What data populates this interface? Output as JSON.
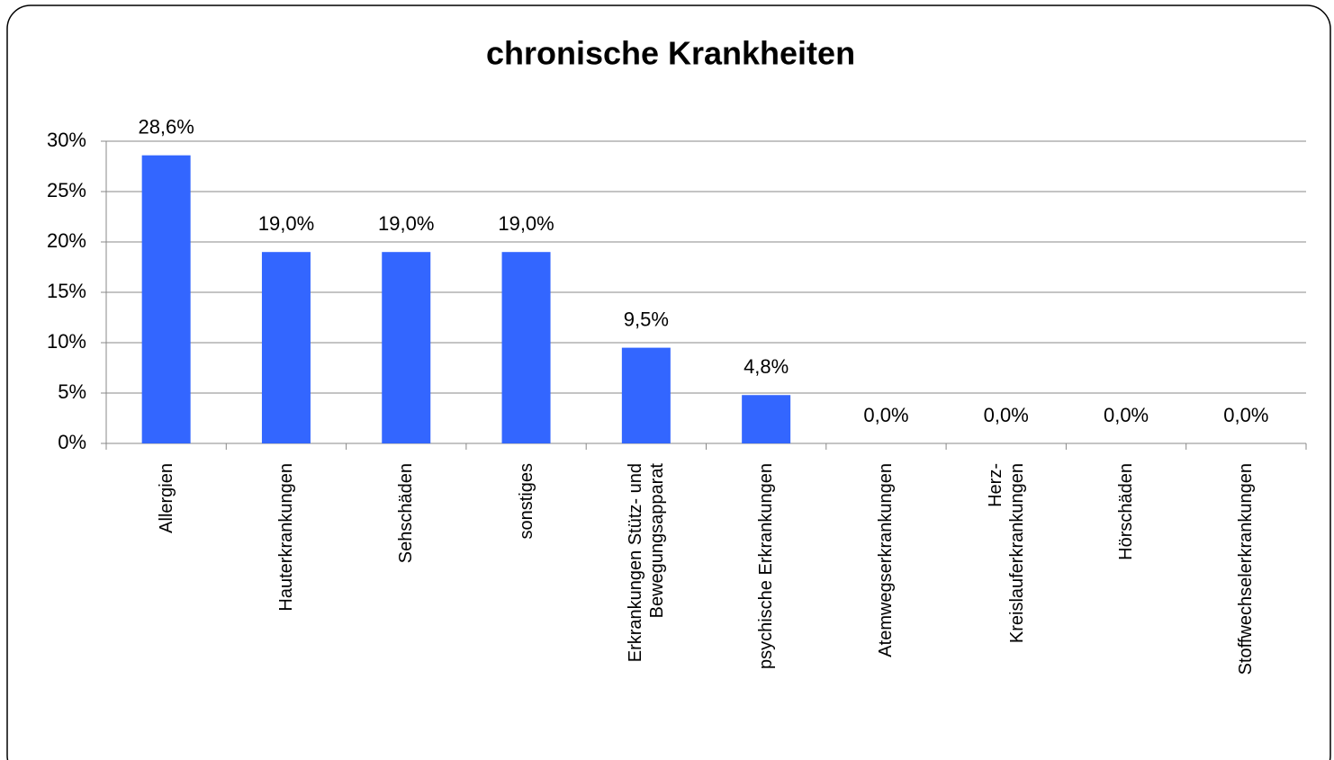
{
  "chart_data": {
    "type": "bar",
    "title": "chronische Krankheiten",
    "categories": [
      "Allergien",
      "Hauterkrankungen",
      "Sehschäden",
      "sonstiges",
      "Erkrankungen Stütz- und Bewegungsapparat",
      "psychische Erkrankungen",
      "Atemwegserkrankungen",
      "Herz-\nKreislauferkrankungen",
      "Hörschäden",
      "Stoffwechselerkrankungen"
    ],
    "values": [
      28.6,
      19.0,
      19.0,
      19.0,
      9.5,
      4.8,
      0.0,
      0.0,
      0.0,
      0.0
    ],
    "value_labels": [
      "28,6%",
      "19,0%",
      "19,0%",
      "19,0%",
      "9,5%",
      "4,8%",
      "0,0%",
      "0,0%",
      "0,0%",
      "0,0%"
    ],
    "color": "#3366ff",
    "ylim": [
      0,
      30
    ],
    "yticks": [
      {
        "value": 0,
        "label": "0%"
      },
      {
        "value": 5,
        "label": "5%"
      },
      {
        "value": 10,
        "label": "10%"
      },
      {
        "value": 15,
        "label": "15%"
      },
      {
        "value": 20,
        "label": "20%"
      },
      {
        "value": 25,
        "label": "25%"
      },
      {
        "value": 30,
        "label": "30%"
      }
    ],
    "grid": true
  }
}
